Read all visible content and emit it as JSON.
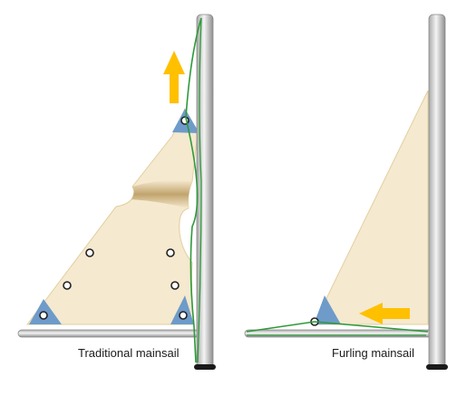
{
  "captions": {
    "traditional": "Traditional mainsail",
    "furling": "Furling mainsail"
  },
  "colors": {
    "sail_fill": "#f5e9cf",
    "sail_edge": "#e6d4a8",
    "sail_fold": "#b8985c",
    "corner_patch": "#6e9bc9",
    "rope": "#2e9a3a",
    "arrow": "#ffc000",
    "mast_light": "#f2f2f2",
    "mast_dark": "#9b9b9b",
    "mast_base": "#1a1a1a"
  },
  "icons": {
    "halyard_pull": "up-arrow-icon",
    "furl_direction": "left-arrow-icon"
  }
}
